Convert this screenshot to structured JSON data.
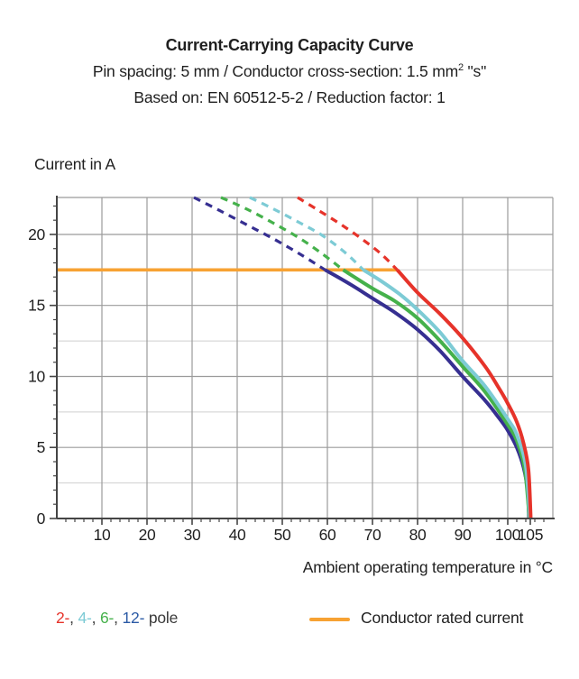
{
  "header": {
    "title": "Current-Carrying Capacity Curve",
    "subtitle_main": "Pin spacing: 5 mm / Conductor cross-section: 1.5 mm",
    "subtitle_sup": "2",
    "subtitle_tail": " \"s\"",
    "based_on": "Based on: EN 60512-5-2 / Reduction factor: 1"
  },
  "chart_data": {
    "type": "line",
    "title": "Current-Carrying Capacity Curve",
    "ylabel": "Current in A",
    "xlabel": "Ambient operating temperature in °C",
    "x_axis": {
      "min": 0,
      "max": 110,
      "major_ticks": [
        10,
        20,
        30,
        40,
        50,
        60,
        70,
        80,
        90,
        100,
        105
      ],
      "minor_tick_step": 2,
      "gridlines": [
        10,
        20,
        30,
        40,
        50,
        60,
        70,
        80,
        90,
        100,
        110
      ]
    },
    "y_axis": {
      "min": 0,
      "max": 22.6,
      "major_ticks": [
        0,
        5,
        10,
        15,
        20
      ],
      "minor_tick_step": 1,
      "major_gridlines": [
        5,
        10,
        15,
        20
      ],
      "light_gridlines": [
        2.5,
        7.5,
        12.5,
        17.5
      ]
    },
    "rated_current": {
      "value": 17.5,
      "x_start": 0,
      "x_end": 75.5,
      "color": "#f7a233"
    },
    "series": [
      {
        "name": "12-pole",
        "color": "#362f91",
        "dashed": [
          [
            30.4,
            22.6
          ],
          [
            36,
            21.7
          ],
          [
            42,
            20.7
          ],
          [
            48,
            19.7
          ],
          [
            54,
            18.6
          ],
          [
            59.5,
            17.5
          ]
        ],
        "solid": [
          [
            59.5,
            17.5
          ],
          [
            65,
            16.5
          ],
          [
            70,
            15.5
          ],
          [
            75,
            14.5
          ],
          [
            80,
            13.3
          ],
          [
            85,
            11.8
          ],
          [
            90,
            10.0
          ],
          [
            95,
            8.3
          ],
          [
            98,
            7.1
          ],
          [
            100,
            6.2
          ],
          [
            102,
            5.0
          ],
          [
            103.5,
            3.6
          ],
          [
            104.4,
            2.0
          ],
          [
            104.7,
            0
          ]
        ]
      },
      {
        "name": "6-pole",
        "color": "#45b14b",
        "dashed": [
          [
            36.4,
            22.6
          ],
          [
            42,
            21.8
          ],
          [
            48,
            20.8
          ],
          [
            54,
            19.7
          ],
          [
            59,
            18.6
          ],
          [
            63.5,
            17.5
          ]
        ],
        "solid": [
          [
            63.5,
            17.5
          ],
          [
            70,
            16.2
          ],
          [
            75,
            15.3
          ],
          [
            80,
            14.1
          ],
          [
            85,
            12.5
          ],
          [
            90,
            10.7
          ],
          [
            95,
            8.9
          ],
          [
            100,
            6.6
          ],
          [
            102,
            5.5
          ],
          [
            103.8,
            3.4
          ],
          [
            104.8,
            0
          ]
        ]
      },
      {
        "name": "4-pole",
        "color": "#7dcbd5",
        "dashed": [
          [
            42.8,
            22.6
          ],
          [
            48,
            21.8
          ],
          [
            54,
            20.8
          ],
          [
            59,
            19.9
          ],
          [
            64,
            18.7
          ],
          [
            68,
            17.5
          ]
        ],
        "solid": [
          [
            68,
            17.5
          ],
          [
            72,
            16.7
          ],
          [
            76,
            15.8
          ],
          [
            80,
            14.7
          ],
          [
            85,
            13.1
          ],
          [
            90,
            11.1
          ],
          [
            95,
            9.3
          ],
          [
            100,
            7.0
          ],
          [
            102,
            5.9
          ],
          [
            104,
            3.7
          ],
          [
            104.9,
            0
          ]
        ]
      },
      {
        "name": "2-pole",
        "color": "#e6332a",
        "dashed": [
          [
            53.4,
            22.6
          ],
          [
            58,
            21.7
          ],
          [
            63,
            20.7
          ],
          [
            68,
            19.6
          ],
          [
            72,
            18.6
          ],
          [
            75.5,
            17.5
          ]
        ],
        "solid": [
          [
            75.5,
            17.5
          ],
          [
            80,
            15.9
          ],
          [
            85,
            14.4
          ],
          [
            90,
            12.7
          ],
          [
            95,
            10.7
          ],
          [
            98,
            9.2
          ],
          [
            100,
            8.1
          ],
          [
            102,
            6.8
          ],
          [
            103.5,
            5.3
          ],
          [
            104.6,
            3.4
          ],
          [
            105.1,
            0
          ]
        ]
      }
    ],
    "colors": {
      "axis": "#454545",
      "grid_major": "#9b9b9b",
      "grid_light": "#cfcfcf",
      "tick_text": "#1f1f1f"
    }
  },
  "legend": {
    "poles": [
      {
        "label": "2-",
        "color": "#e6332a"
      },
      {
        "label": "4-",
        "color": "#7dcbd5"
      },
      {
        "label": "6-",
        "color": "#45b14b"
      },
      {
        "label": "12-",
        "color": "#2b5aa5"
      }
    ],
    "separator": ", ",
    "suffix": " pole",
    "suffix_color": "#3a3a3a",
    "rated": {
      "label": "Conductor rated current",
      "color": "#f7a233"
    }
  }
}
